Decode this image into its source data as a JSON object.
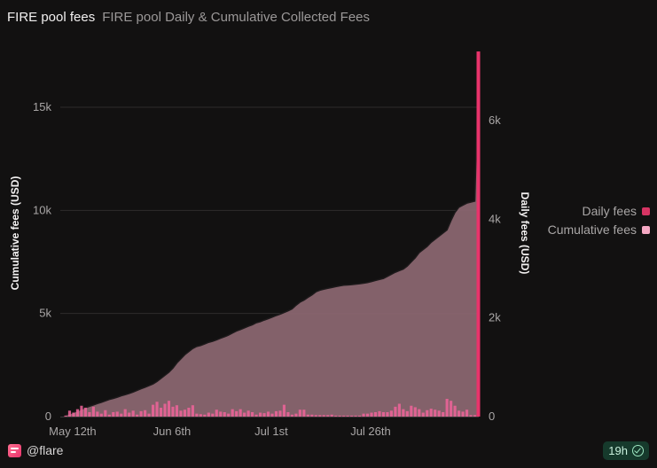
{
  "header": {
    "title": "FIRE pool fees",
    "subtitle": "FIRE pool Daily & Cumulative Collected Fees"
  },
  "legend": {
    "items": [
      {
        "label": "Daily fees",
        "color": "#d63463"
      },
      {
        "label": "Cumulative fees",
        "color": "#f5a8c3"
      }
    ]
  },
  "footer": {
    "brand": "@flare",
    "badge": "19h"
  },
  "colors": {
    "daily": "#f0649a",
    "daily_spike": "#e8336b",
    "cumulative_fill": "#8a6670",
    "cumulative_line": "#1d1a1b",
    "grid": "#2e2b2c"
  },
  "chart_data": {
    "type": "area",
    "start_date": "May 8th",
    "end_date": "Aug 24th",
    "x_ticks": [
      {
        "date": "May 12th"
      },
      {
        "date": "Jun 6th"
      },
      {
        "date": "Jul 1st"
      },
      {
        "date": "Jul 26th"
      }
    ],
    "yleft": {
      "label": "Cumulative fees (USD)",
      "ylim": [
        0,
        15000
      ],
      "ticks": [
        0,
        5000,
        10000,
        15000
      ],
      "tick_labels": [
        "0",
        "5k",
        "10k",
        "15k"
      ]
    },
    "yright": {
      "label": "Daily fees (USD)",
      "ylim": [
        0,
        6000
      ],
      "ticks": [
        0,
        2000,
        4000,
        6000
      ],
      "tick_labels": [
        "0",
        "2k",
        "4k",
        "6k"
      ]
    },
    "series": [
      {
        "name": "Cumulative fees",
        "axis": "left",
        "values": [
          60,
          130,
          200,
          280,
          360,
          430,
          500,
          560,
          630,
          690,
          760,
          830,
          880,
          940,
          1010,
          1060,
          1120,
          1190,
          1270,
          1350,
          1420,
          1500,
          1580,
          1700,
          1850,
          2000,
          2150,
          2350,
          2600,
          2800,
          3000,
          3150,
          3300,
          3400,
          3450,
          3520,
          3600,
          3650,
          3720,
          3800,
          3870,
          3950,
          4050,
          4150,
          4220,
          4300,
          4380,
          4450,
          4550,
          4600,
          4680,
          4750,
          4820,
          4900,
          4970,
          5050,
          5130,
          5220,
          5400,
          5550,
          5650,
          5780,
          5900,
          6050,
          6130,
          6180,
          6220,
          6260,
          6300,
          6340,
          6370,
          6380,
          6400,
          6420,
          6440,
          6470,
          6500,
          6550,
          6600,
          6650,
          6700,
          6800,
          6900,
          7000,
          7080,
          7150,
          7300,
          7500,
          7700,
          7950,
          8100,
          8250,
          8450,
          8600,
          8750,
          8900,
          9050,
          9500,
          9900,
          10150,
          10250,
          10350,
          10400,
          10450,
          17730
        ]
      },
      {
        "name": "Daily fees",
        "axis": "right",
        "values": [
          20,
          120,
          80,
          150,
          220,
          180,
          90,
          200,
          100,
          60,
          130,
          40,
          90,
          100,
          60,
          150,
          80,
          120,
          40,
          110,
          130,
          60,
          240,
          300,
          180,
          260,
          320,
          200,
          230,
          120,
          140,
          180,
          230,
          60,
          50,
          40,
          80,
          60,
          140,
          100,
          90,
          60,
          150,
          110,
          150,
          80,
          120,
          90,
          40,
          80,
          70,
          100,
          60,
          110,
          120,
          240,
          90,
          40,
          60,
          140,
          140,
          40,
          40,
          30,
          30,
          30,
          30,
          40,
          20,
          20,
          20,
          20,
          20,
          20,
          20,
          60,
          60,
          80,
          90,
          110,
          90,
          90,
          120,
          200,
          260,
          150,
          110,
          220,
          190,
          150,
          80,
          130,
          160,
          140,
          120,
          90,
          360,
          320,
          220,
          120,
          100,
          140,
          30,
          30,
          7400
        ]
      }
    ]
  }
}
